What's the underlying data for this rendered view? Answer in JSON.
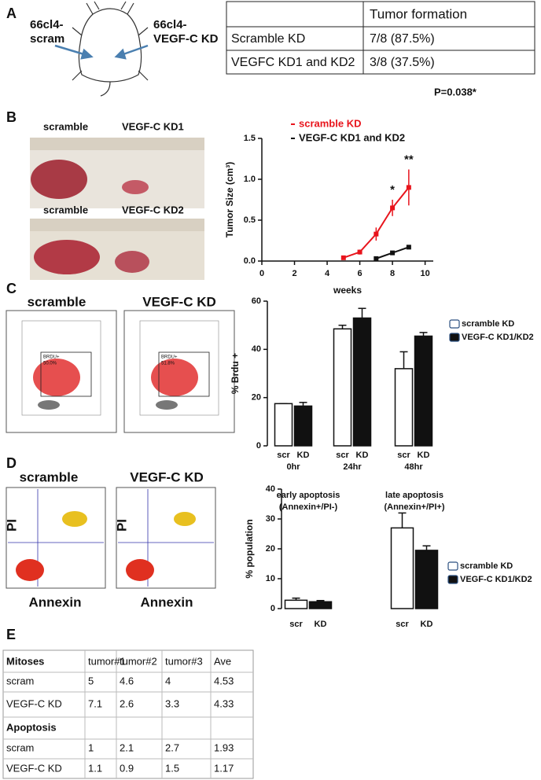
{
  "panel_labels": [
    "A",
    "B",
    "C",
    "D",
    "E"
  ],
  "panel_a": {
    "left_label": [
      "66cl4-",
      "scram"
    ],
    "right_label": [
      "66cl4-",
      "VEGF-C KD"
    ],
    "table": {
      "header": "Tumor formation",
      "rows": [
        [
          "Scramble KD",
          "7/8 (87.5%)"
        ],
        [
          "VEGFC KD1 and KD2",
          "3/8 (37.5%)"
        ]
      ]
    },
    "p_value": "P=0.038*"
  },
  "panel_b": {
    "photo_captions": [
      [
        "scramble",
        "VEGF-C KD1"
      ],
      [
        "scramble",
        "VEGF-C KD2"
      ]
    ]
  },
  "panel_c": {
    "captions": [
      "scramble",
      "VEGF-C KD"
    ],
    "gates": [
      [
        "BRDU+",
        "50.0%"
      ],
      [
        "BRDU+",
        "51.8%"
      ]
    ]
  },
  "panel_d": {
    "captions": [
      "scramble",
      "VEGF-C KD"
    ],
    "y_label": "PI",
    "x_label": "Annexin"
  },
  "panel_e": {
    "header": [
      "Mitoses",
      "tumor#1",
      "tumor#2",
      "tumor#3",
      "Ave"
    ],
    "mitoses": [
      [
        "scram",
        5,
        4.6,
        4,
        4.53
      ],
      [
        "VEGF-C KD",
        7.1,
        2.6,
        3.3,
        4.33
      ]
    ],
    "apoptosis_title": "Apoptosis",
    "apoptosis": [
      [
        "scram",
        1,
        2.1,
        2.7,
        1.93
      ],
      [
        "VEGF-C KD",
        1.1,
        0.9,
        1.5,
        1.17
      ]
    ]
  },
  "chart_data": [
    {
      "type": "line",
      "ylabel": "Tumor Size (cm³)",
      "xlabel": "weeks",
      "xlim": [
        0,
        10.5
      ],
      "xticks": [
        0,
        2,
        4,
        6,
        8,
        10
      ],
      "ylim": [
        0,
        1.5
      ],
      "yticks": [
        {
          "value": 0,
          "label": "0.0"
        },
        0.5,
        {
          "value": 1,
          "label": "1.0"
        },
        1.5
      ],
      "series": [
        {
          "name": "scramble KD",
          "color": "#e8141c",
          "x": [
            5,
            6,
            7,
            8,
            9
          ],
          "values": [
            0.04,
            0.11,
            0.33,
            0.65,
            0.9
          ],
          "errors": [
            0,
            0.03,
            0.08,
            0.1,
            0.22
          ]
        },
        {
          "name": "VEGF-C KD1 and KD2",
          "color": "#111111",
          "x": [
            7,
            8,
            9
          ],
          "values": [
            0.03,
            0.1,
            0.17
          ],
          "errors": [
            0.01,
            0.01,
            0.025
          ]
        }
      ],
      "annotations": [
        {
          "x": 8,
          "text": "*"
        },
        {
          "x": 9,
          "text": "**"
        }
      ]
    },
    {
      "type": "bar",
      "ylabel": "% Brdu +",
      "ylim": [
        0,
        60
      ],
      "yticks": [
        0,
        20,
        40,
        60
      ],
      "categories": [
        "0hr",
        "24hr",
        "48hr"
      ],
      "category_labels": "bottom",
      "series": [
        {
          "name": "scramble KD",
          "label": "scr",
          "color": "#ffffff",
          "values": [
            17.5,
            48.5,
            32
          ],
          "errors": [
            0,
            1.5,
            7
          ]
        },
        {
          "name": "VEGF-C KD1/KD2",
          "label": "KD",
          "color": "#111111",
          "values": [
            16.5,
            53,
            45.5
          ],
          "errors": [
            1.5,
            4,
            1.5
          ]
        }
      ]
    },
    {
      "type": "bar",
      "ylabel": "% population",
      "ylim": [
        0,
        40
      ],
      "yticks": [
        0,
        10,
        20,
        30,
        40
      ],
      "categories": [
        [
          "early apoptosis",
          "(Annexin+/PI-)"
        ],
        [
          "late apoptosis",
          "(Annexin+/PI+)"
        ]
      ],
      "category_labels": "top",
      "series": [
        {
          "name": "scramble KD",
          "label": "scr",
          "color": "#ffffff",
          "values": [
            2.8,
            27
          ],
          "errors": [
            0.7,
            5
          ]
        },
        {
          "name": "VEGF-C KD1/KD2",
          "label": "KD",
          "color": "#111111",
          "values": [
            2.3,
            19.5
          ],
          "errors": [
            0.4,
            1.5
          ]
        }
      ]
    }
  ]
}
